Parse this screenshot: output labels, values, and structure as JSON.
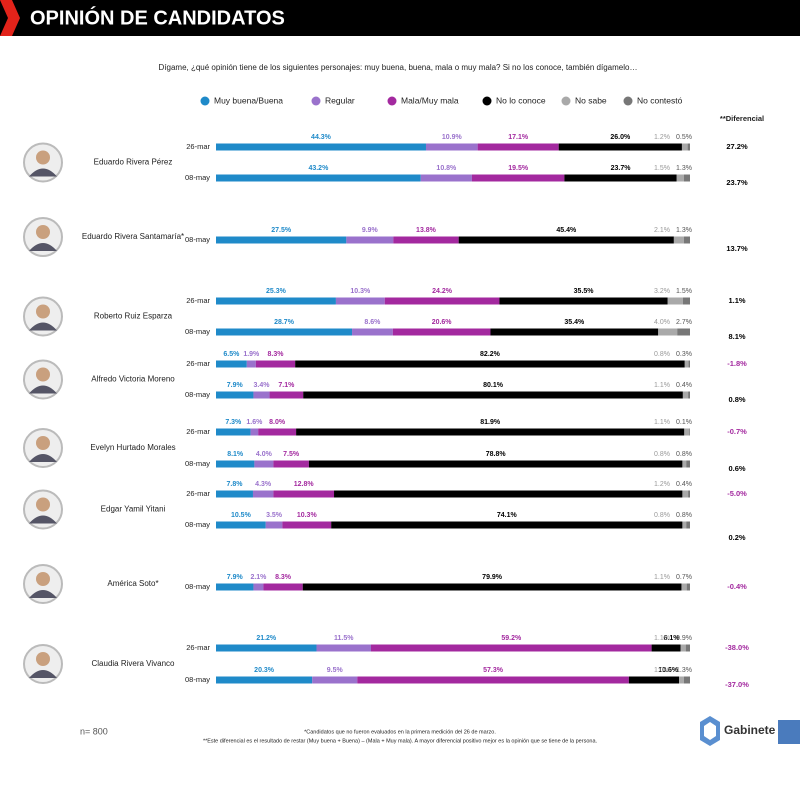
{
  "chart_data": {
    "type": "bar",
    "orientation": "horizontal",
    "stacked": true,
    "title": "OPINIÓN DE CANDIDATOS",
    "subtitle": "Dígame, ¿qué opinión tiene de los siguientes personajes: muy buena, buena, mala o muy mala? Si no los conoce, también dígamelo…",
    "xlim": [
      0,
      100
    ],
    "series": [
      {
        "name": "Muy buena/Buena",
        "color": "#1f8ac9"
      },
      {
        "name": "Regular",
        "color": "#9a72cc"
      },
      {
        "name": "Mala/Muy mala",
        "color": "#a3299f"
      },
      {
        "name": "No lo conoce",
        "color": "#000000"
      },
      {
        "name": "No sabe",
        "color": "#a9a9a9"
      },
      {
        "name": "No contestó",
        "color": "#777777"
      }
    ],
    "diff_title": "**Diferencial",
    "diff_colors": {
      "positive": "#000000",
      "negative": "#a3299f"
    },
    "groups": [
      {
        "name": "Eduardo Rivera Pérez",
        "rows": [
          {
            "date": "26-mar",
            "values": [
              44.3,
              10.9,
              17.1,
              26.0,
              1.2,
              0.5
            ],
            "value_labels": [
              "44.3%",
              "10.9%",
              "17.1%",
              "26.0%",
              "1.2%",
              "0.5%"
            ],
            "diff": 27.2,
            "diff_label": "27.2%"
          },
          {
            "date": "08-may",
            "values": [
              43.2,
              10.8,
              19.5,
              23.7,
              1.5,
              1.3
            ],
            "value_labels": [
              "43.2%",
              "10.8%",
              "19.5%",
              "23.7%",
              "1.5%",
              "1.3%"
            ],
            "diff": 23.7,
            "diff_label": "23.7%"
          }
        ]
      },
      {
        "name": "Eduardo Rivera Santamaría*",
        "rows": [
          {
            "date": "08-may",
            "values": [
              27.5,
              9.9,
              13.8,
              45.4,
              2.1,
              1.3
            ],
            "value_labels": [
              "27.5%",
              "9.9%",
              "13.8%",
              "45.4%",
              "2.1%",
              "1.3%"
            ],
            "diff": 13.7,
            "diff_label": "13.7%"
          }
        ]
      },
      {
        "name": "Roberto Ruiz Esparza",
        "rows": [
          {
            "date": "26-mar",
            "values": [
              25.3,
              10.3,
              24.2,
              35.5,
              3.2,
              1.5
            ],
            "value_labels": [
              "25.3%",
              "10.3%",
              "24.2%",
              "35.5%",
              "3.2%",
              "1.5%"
            ],
            "diff": 1.1,
            "diff_label": "1.1%"
          },
          {
            "date": "08-may",
            "values": [
              28.7,
              8.6,
              20.6,
              35.4,
              4.0,
              2.7
            ],
            "value_labels": [
              "28.7%",
              "8.6%",
              "20.6%",
              "35.4%",
              "4.0%",
              "2.7%"
            ],
            "diff": 8.1,
            "diff_label": "8.1%"
          }
        ]
      },
      {
        "name": "Alfredo Victoria Moreno",
        "rows": [
          {
            "date": "26-mar",
            "values": [
              6.5,
              1.9,
              8.3,
              82.2,
              0.8,
              0.3
            ],
            "value_labels": [
              "6.5%",
              "1.9%",
              "8.3%",
              "82.2%",
              "0.8%",
              "0.3%"
            ],
            "diff": -1.8,
            "diff_label": "-1.8%"
          },
          {
            "date": "08-may",
            "values": [
              7.9,
              3.4,
              7.1,
              80.1,
              1.1,
              0.4
            ],
            "value_labels": [
              "7.9%",
              "3.4%",
              "7.1%",
              "80.1%",
              "1.1%",
              "0.4%"
            ],
            "diff": 0.8,
            "diff_label": "0.8%"
          }
        ]
      },
      {
        "name": "Evelyn Hurtado Morales",
        "rows": [
          {
            "date": "26-mar",
            "values": [
              7.3,
              1.6,
              8.0,
              81.9,
              1.1,
              0.1
            ],
            "value_labels": [
              "7.3%",
              "1.6%",
              "8.0%",
              "81.9%",
              "1.1%",
              "0.1%"
            ],
            "diff": -0.7,
            "diff_label": "-0.7%"
          },
          {
            "date": "08-may",
            "values": [
              8.1,
              4.0,
              7.5,
              78.8,
              0.8,
              0.8
            ],
            "value_labels": [
              "8.1%",
              "4.0%",
              "7.5%",
              "78.8%",
              "0.8%",
              "0.8%"
            ],
            "diff": 0.6,
            "diff_label": "0.6%"
          }
        ]
      },
      {
        "name": "Edgar Yamil Yitani",
        "rows": [
          {
            "date": "26-mar",
            "values": [
              7.8,
              4.3,
              12.8,
              73.5,
              1.2,
              0.4
            ],
            "value_labels": [
              "7.8%",
              "4.3%",
              "12.8%",
              null,
              "1.2%",
              "0.4%"
            ],
            "diff": -5.0,
            "diff_label": "-5.0%"
          },
          {
            "date": "08-may",
            "values": [
              10.5,
              3.5,
              10.3,
              74.1,
              0.8,
              0.8
            ],
            "value_labels": [
              "10.5%",
              "3.5%",
              "10.3%",
              "74.1%",
              "0.8%",
              "0.8%"
            ],
            "diff": 0.2,
            "diff_label": "0.2%"
          }
        ]
      },
      {
        "name": "América Soto*",
        "rows": [
          {
            "date": "08-may",
            "values": [
              7.9,
              2.1,
              8.3,
              79.9,
              1.1,
              0.7
            ],
            "value_labels": [
              "7.9%",
              "2.1%",
              "8.3%",
              "79.9%",
              "1.1%",
              "0.7%"
            ],
            "diff": -0.4,
            "diff_label": "-0.4%"
          }
        ]
      },
      {
        "name": "Claudia Rivera Vivanco",
        "rows": [
          {
            "date": "26-mar",
            "values": [
              21.2,
              11.5,
              59.2,
              6.1,
              1.1,
              0.9
            ],
            "value_labels": [
              "21.2%",
              "11.5%",
              "59.2%",
              "6.1%",
              "1.1%",
              "0.9%"
            ],
            "diff": -38.0,
            "diff_label": "-38.0%"
          },
          {
            "date": "08-may",
            "values": [
              20.3,
              9.5,
              57.3,
              10.6,
              1.0,
              1.3
            ],
            "value_labels": [
              "20.3%",
              "9.5%",
              "57.3%",
              "10.6%",
              "1.0%",
              "1.3%"
            ],
            "diff": -37.0,
            "diff_label": "-37.0%"
          }
        ]
      }
    ],
    "sample": "n= 800",
    "notes": [
      "*Candidatos que no fueron evaluados en la primera medición del 26 de marzo.",
      "**Este diferencial es el resultado de restar (Muy buena + Buena) – (Mala + Muy mala). A mayor diferencial positivo mejor es la opinión que se tiene de la persona."
    ],
    "brand": "Gabinete"
  }
}
